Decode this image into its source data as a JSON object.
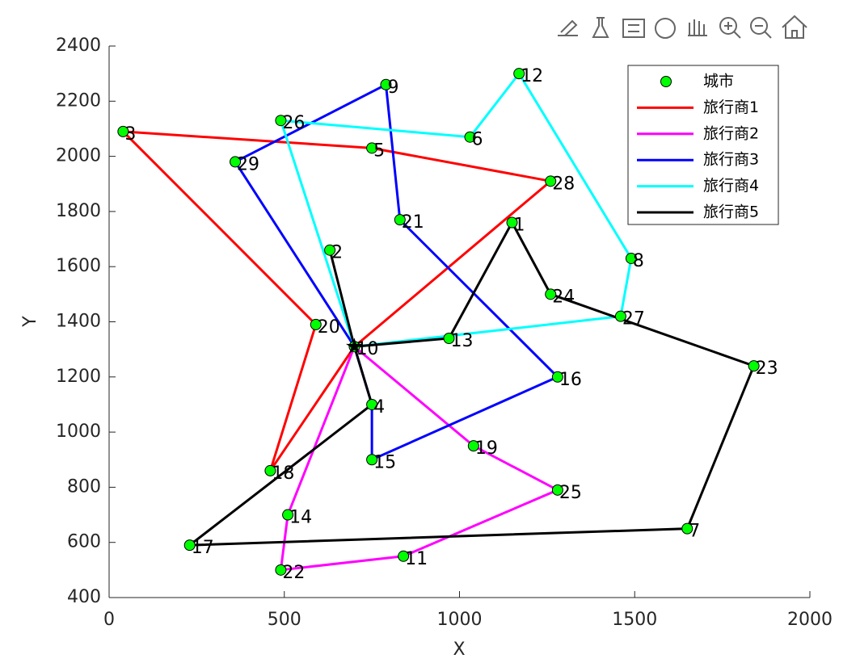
{
  "chart_data": {
    "type": "route-map",
    "xlabel": "X",
    "ylabel": "Y",
    "xlim": [
      0,
      2000
    ],
    "xticks": [
      0,
      500,
      1000,
      1500,
      2000
    ],
    "ylim": [
      400,
      2400
    ],
    "yticks": [
      400,
      600,
      800,
      1000,
      1200,
      1400,
      1600,
      1800,
      2000,
      2200,
      2400
    ],
    "legend": "upper right",
    "cities": {
      "name": "城市",
      "color": "#00ff00",
      "labels": [
        1,
        2,
        3,
        4,
        5,
        6,
        7,
        8,
        9,
        10,
        11,
        12,
        13,
        14,
        15,
        16,
        17,
        18,
        19,
        20,
        21,
        22,
        23,
        24,
        25,
        26,
        27,
        28,
        29
      ],
      "x": [
        1150,
        630,
        40,
        750,
        750,
        1030,
        1650,
        1490,
        790,
        700,
        840,
        1170,
        970,
        510,
        750,
        1280,
        230,
        460,
        1040,
        590,
        830,
        490,
        1840,
        1260,
        1280,
        490,
        1460,
        1260,
        360
      ],
      "y": [
        1760,
        1660,
        2090,
        1100,
        2030,
        2070,
        650,
        1630,
        2260,
        1310,
        550,
        2300,
        1340,
        700,
        900,
        1200,
        590,
        860,
        950,
        1390,
        1770,
        500,
        1240,
        1500,
        790,
        2130,
        1420,
        1910,
        1980
      ]
    },
    "depot": {
      "x": 700,
      "y": 1310
    },
    "series": [
      {
        "name": "旅行商1",
        "color": "#ff0000",
        "x": [
          700,
          1260,
          750,
          40,
          590,
          460,
          700
        ],
        "y": [
          1310,
          1910,
          2030,
          2090,
          1390,
          860,
          1310
        ]
      },
      {
        "name": "旅行商2",
        "color": "#ff00ff",
        "x": [
          700,
          1040,
          1280,
          840,
          490,
          510,
          700
        ],
        "y": [
          1310,
          950,
          790,
          550,
          500,
          700,
          1310
        ]
      },
      {
        "name": "旅行商3",
        "color": "#0000ff",
        "x": [
          700,
          360,
          790,
          830,
          1280,
          750,
          750,
          700
        ],
        "y": [
          1310,
          1980,
          2260,
          1770,
          1200,
          900,
          1100,
          1310
        ]
      },
      {
        "name": "旅行商4",
        "color": "#00ffff",
        "x": [
          700,
          490,
          1030,
          1170,
          1490,
          1460,
          700
        ],
        "y": [
          1310,
          2130,
          2070,
          2300,
          1630,
          1420,
          1310
        ]
      },
      {
        "name": "旅行商5",
        "color": "#000000",
        "x": [
          630,
          700,
          970,
          1150,
          1260,
          1840,
          1650,
          230,
          750,
          700
        ],
        "y": [
          1660,
          1310,
          1340,
          1760,
          1500,
          1240,
          650,
          590,
          1100,
          1310
        ]
      }
    ]
  }
}
